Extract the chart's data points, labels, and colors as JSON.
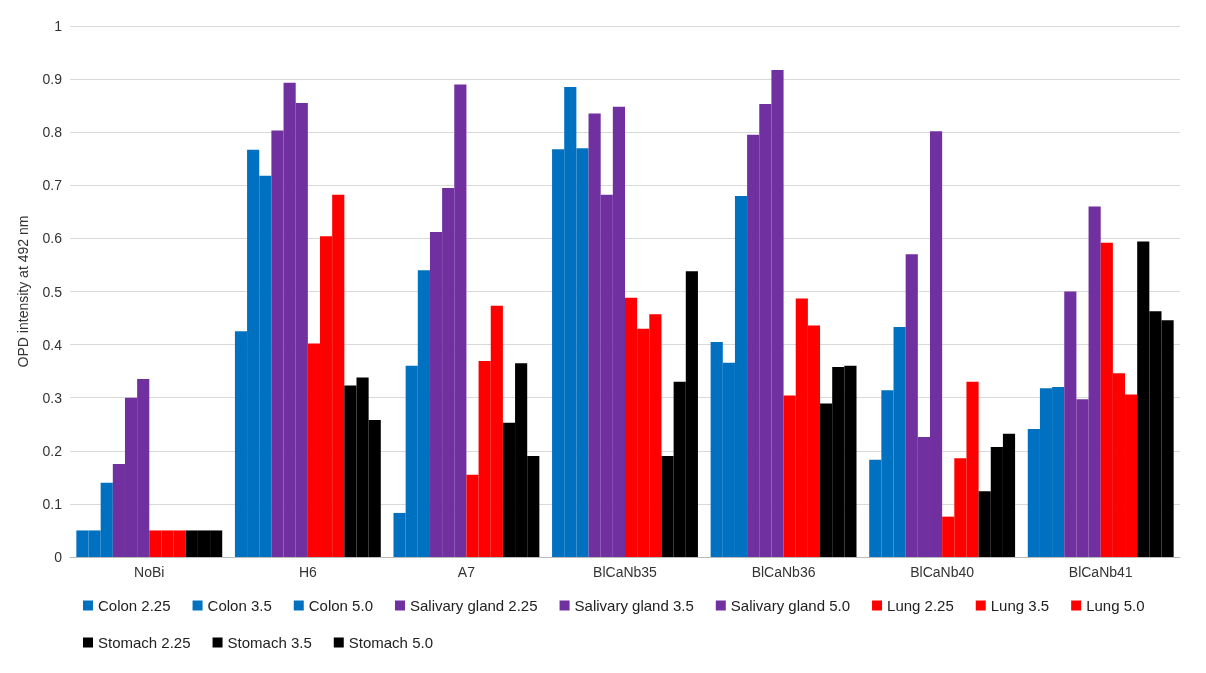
{
  "chart_data": {
    "type": "bar",
    "ylabel": "OPD intensity at 492 nm",
    "categories": [
      "NoBi",
      "H6",
      "A7",
      "BlCaNb35",
      "BlCaNb36",
      "BlCaNb40",
      "BlCaNb41"
    ],
    "series": [
      {
        "name": "Colon 2.25",
        "color": "#0070c0",
        "values": [
          0.05,
          0.425,
          0.083,
          0.768,
          0.405,
          0.183,
          0.241
        ]
      },
      {
        "name": "Colon 3.5",
        "color": "#0070c0",
        "values": [
          0.05,
          0.767,
          0.36,
          0.885,
          0.366,
          0.314,
          0.318
        ]
      },
      {
        "name": "Colon 5.0",
        "color": "#0070c0",
        "values": [
          0.14,
          0.718,
          0.54,
          0.77,
          0.68,
          0.433,
          0.32
        ]
      },
      {
        "name": "Salivary gland 2.25",
        "color": "#7030a0",
        "values": [
          0.175,
          0.803,
          0.612,
          0.835,
          0.795,
          0.57,
          0.5
        ]
      },
      {
        "name": "Salivary gland 3.5",
        "color": "#7030a0",
        "values": [
          0.3,
          0.893,
          0.695,
          0.682,
          0.853,
          0.226,
          0.297
        ]
      },
      {
        "name": "Salivary gland 5.0",
        "color": "#7030a0",
        "values": [
          0.335,
          0.855,
          0.89,
          0.848,
          0.917,
          0.802,
          0.66
        ]
      },
      {
        "name": "Lung 2.25",
        "color": "#ff0000",
        "values": [
          0.05,
          0.402,
          0.155,
          0.488,
          0.304,
          0.076,
          0.592
        ]
      },
      {
        "name": "Lung 3.5",
        "color": "#ff0000",
        "values": [
          0.05,
          0.604,
          0.369,
          0.43,
          0.487,
          0.186,
          0.346
        ]
      },
      {
        "name": "Lung 5.0",
        "color": "#ff0000",
        "values": [
          0.05,
          0.682,
          0.473,
          0.457,
          0.436,
          0.33,
          0.306
        ]
      },
      {
        "name": "Stomach 2.25",
        "color": "#000000",
        "values": [
          0.05,
          0.323,
          0.253,
          0.19,
          0.289,
          0.124,
          0.594
        ]
      },
      {
        "name": "Stomach 3.5",
        "color": "#000000",
        "values": [
          0.05,
          0.338,
          0.365,
          0.33,
          0.358,
          0.207,
          0.463
        ]
      },
      {
        "name": "Stomach 5.0",
        "color": "#000000",
        "values": [
          0.05,
          0.258,
          0.19,
          0.538,
          0.36,
          0.232,
          0.446
        ]
      }
    ],
    "ylim": [
      0,
      1
    ],
    "yticks": [
      0,
      0.1,
      0.2,
      0.3,
      0.4,
      0.5,
      0.6,
      0.7,
      0.8,
      0.9,
      1
    ],
    "grid": "y",
    "legend": "bottom"
  }
}
